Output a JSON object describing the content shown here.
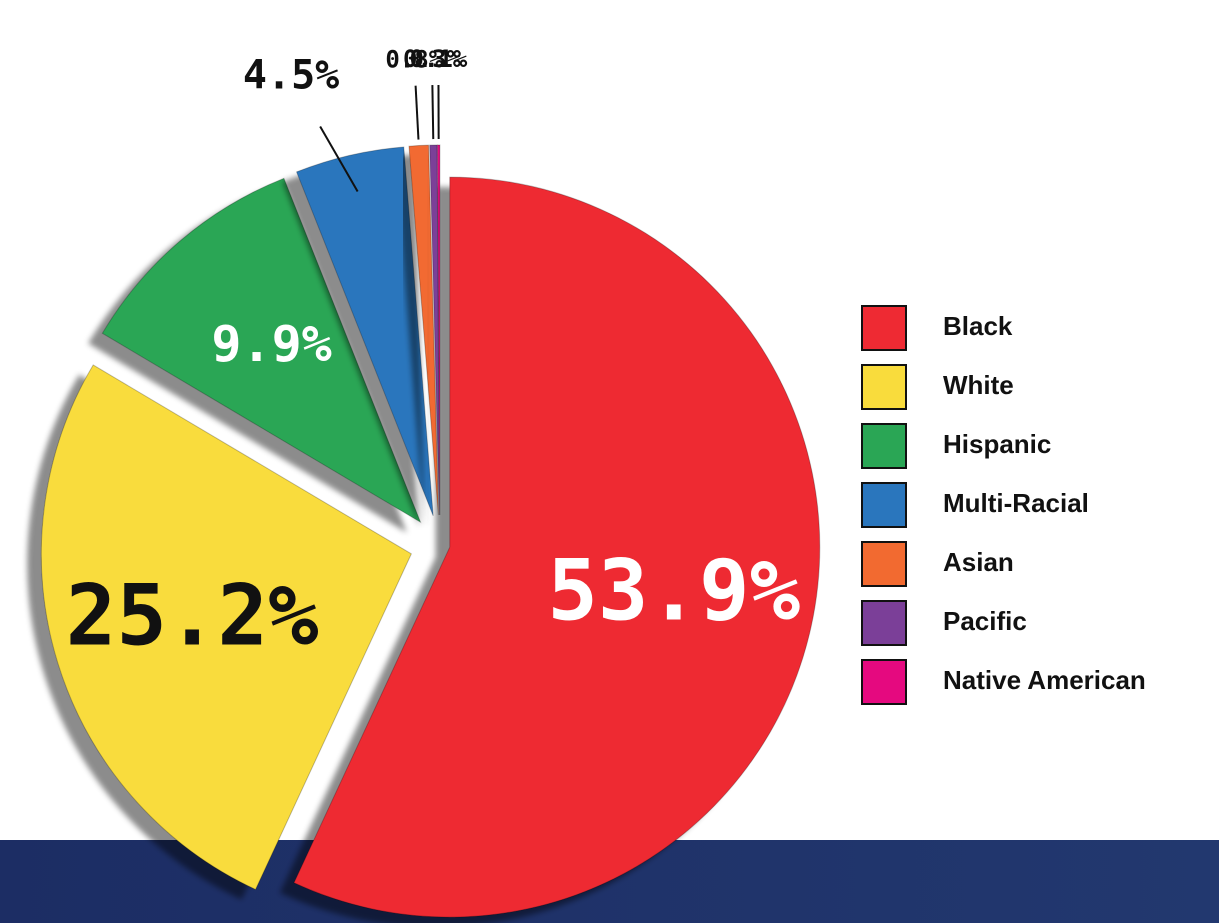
{
  "chart_data": {
    "type": "pie",
    "categories": [
      "Black",
      "White",
      "Hispanic",
      "Multi-Racial",
      "Asian",
      "Pacific",
      "Native American"
    ],
    "values": [
      53.9,
      25.2,
      9.9,
      4.5,
      0.8,
      0.3,
      0.1
    ],
    "value_labels": [
      "53.9%",
      "25.2%",
      "9.9%",
      "4.5%",
      "0.8%",
      "0.3%",
      "0.1%"
    ],
    "colors": [
      "#ee2a33",
      "#f9dc3c",
      "#2aa655",
      "#2a76bd",
      "#f26a30",
      "#7b3f98",
      "#e5097f"
    ],
    "legend": "right"
  }
}
